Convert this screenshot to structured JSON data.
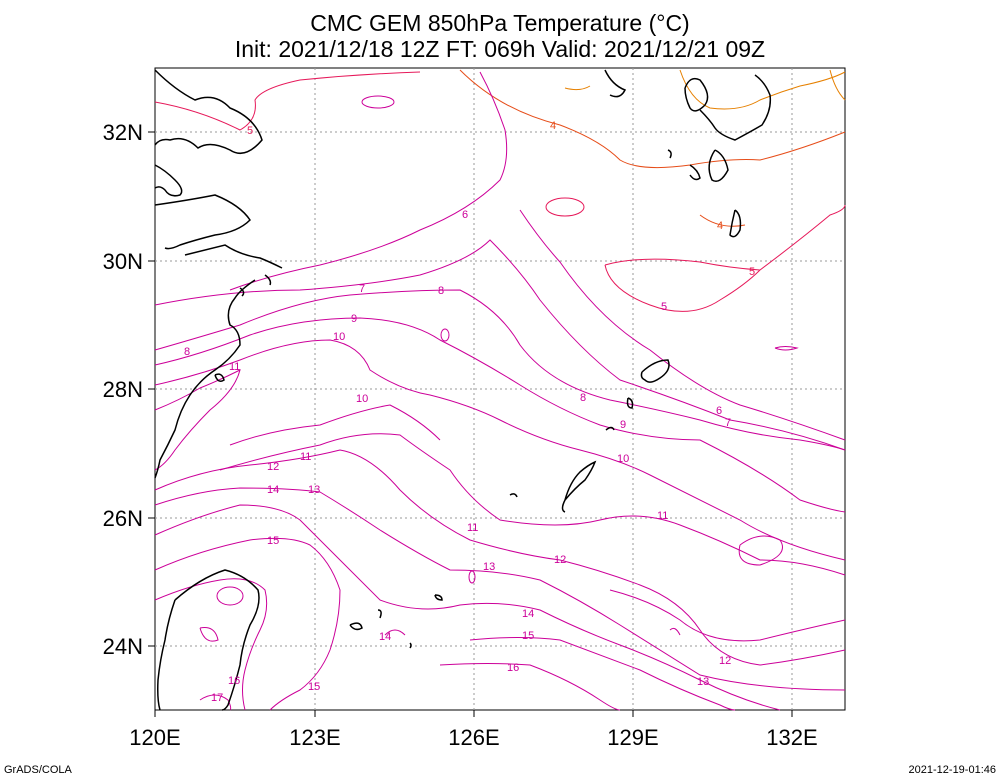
{
  "title_line1": "CMC GEM 850hPa Temperature (°C)",
  "title_line2": "Init: 2021/12/18 12Z  FT: 069h  Valid: 2021/12/21 09Z",
  "footer_left": "GrADS/COLA",
  "footer_right": "2021-12-19-01:46",
  "lat_labels": [
    "32N",
    "30N",
    "28N",
    "26N",
    "24N"
  ],
  "lon_labels": [
    "120E",
    "123E",
    "126E",
    "129E",
    "132E"
  ],
  "contour_labels": [
    "4",
    "4",
    "5",
    "5",
    "5",
    "6",
    "6",
    "7",
    "7",
    "8",
    "8",
    "8",
    "9",
    "9",
    "10",
    "10",
    "10",
    "11",
    "11",
    "11",
    "11",
    "12",
    "12",
    "12",
    "13",
    "13",
    "13",
    "14",
    "14",
    "14",
    "15",
    "15",
    "15",
    "16",
    "16",
    "17"
  ],
  "colors": {
    "contour_warm": "#cc0099",
    "contour_mid": "#e6195a",
    "contour_cool": "#e64d19",
    "contour_cold": "#e68000",
    "coast": "#000000",
    "grid": "#999999"
  }
}
